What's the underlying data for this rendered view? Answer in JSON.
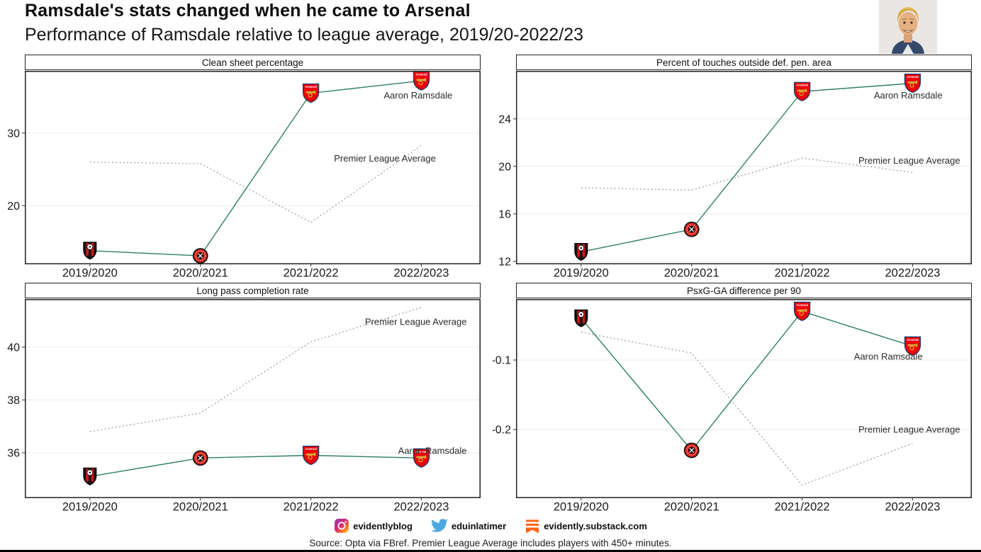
{
  "header": {
    "title": "Ramsdale's stats changed when he came to Arsenal",
    "subtitle": "Performance of Ramsdale relative to league average, 2019/20-2022/23"
  },
  "chart_data": [
    {
      "type": "line",
      "title": "Clean sheet percentage",
      "categories": [
        "2019/2020",
        "2020/2021",
        "2021/2022",
        "2022/2023"
      ],
      "series": [
        {
          "name": "Aaron Ramsdale",
          "style": "solid",
          "values": [
            13.8,
            13.1,
            35.5,
            37.2
          ],
          "clubs": [
            "bournemouth",
            "sheffield-united",
            "arsenal",
            "arsenal"
          ]
        },
        {
          "name": "Premier League Average",
          "style": "dotted",
          "values": [
            26.0,
            25.8,
            17.7,
            28.3
          ]
        }
      ],
      "y_ticks": [
        20,
        30
      ],
      "ylim": [
        12.0,
        38.5
      ],
      "annotations": [
        {
          "text": "Aaron Ramsdale",
          "x": 2.97,
          "y": 35.2
        },
        {
          "text": "Premier League Average",
          "x": 2.67,
          "y": 26.5
        }
      ]
    },
    {
      "type": "line",
      "title": "Percent of touches outside def. pen. area",
      "categories": [
        "2019/2020",
        "2020/2021",
        "2021/2022",
        "2022/2023"
      ],
      "series": [
        {
          "name": "Aaron Ramsdale",
          "style": "solid",
          "values": [
            12.8,
            14.7,
            26.3,
            27.0
          ],
          "clubs": [
            "bournemouth",
            "sheffield-united",
            "arsenal",
            "arsenal"
          ]
        },
        {
          "name": "Premier League Average",
          "style": "dotted",
          "values": [
            18.2,
            18.0,
            20.7,
            19.5
          ]
        }
      ],
      "y_ticks": [
        12,
        16,
        20,
        24
      ],
      "ylim": [
        11.8,
        28.0
      ],
      "annotations": [
        {
          "text": "Aaron Ramsdale",
          "x": 2.96,
          "y": 26.0
        },
        {
          "text": "Premier League Average",
          "x": 2.97,
          "y": 20.5
        }
      ]
    },
    {
      "type": "line",
      "title": "Long pass completion rate",
      "categories": [
        "2019/2020",
        "2020/2021",
        "2021/2022",
        "2022/2023"
      ],
      "series": [
        {
          "name": "Aaron Ramsdale",
          "style": "solid",
          "values": [
            35.1,
            35.8,
            35.9,
            35.8
          ],
          "clubs": [
            "bournemouth",
            "sheffield-united",
            "arsenal",
            "arsenal"
          ]
        },
        {
          "name": "Premier League Average",
          "style": "dotted",
          "values": [
            36.8,
            37.5,
            40.2,
            41.5
          ]
        }
      ],
      "y_ticks": [
        36,
        38,
        40
      ],
      "ylim": [
        34.3,
        41.8
      ],
      "annotations": [
        {
          "text": "Premier League Average",
          "x": 2.95,
          "y": 40.96
        },
        {
          "text": "Aaron Ramsdale",
          "x": 3.1,
          "y": 36.08
        }
      ]
    },
    {
      "type": "line",
      "title": "PsxG-GA difference per 90",
      "categories": [
        "2019/2020",
        "2020/2021",
        "2021/2022",
        "2022/2023"
      ],
      "series": [
        {
          "name": "Aaron Ramsdale",
          "style": "solid",
          "values": [
            -0.04,
            -0.23,
            -0.03,
            -0.08
          ],
          "clubs": [
            "bournemouth",
            "sheffield-united",
            "arsenal",
            "arsenal"
          ]
        },
        {
          "name": "Premier League Average",
          "style": "dotted",
          "values": [
            -0.06,
            -0.09,
            -0.28,
            -0.22
          ]
        }
      ],
      "y_ticks": [
        -0.1,
        -0.2
      ],
      "ylim": [
        -0.298,
        -0.013
      ],
      "annotations": [
        {
          "text": "Aaron Ramsdale",
          "x": 2.78,
          "y": -0.095
        },
        {
          "text": "Premier League Average",
          "x": 2.97,
          "y": -0.2
        }
      ]
    }
  ],
  "footer": {
    "social": [
      {
        "icon": "instagram-icon",
        "label": "evidentlyblog"
      },
      {
        "icon": "twitter-icon",
        "label": "eduinlatimer"
      },
      {
        "icon": "substack-icon",
        "label": "evidently.substack.com"
      }
    ],
    "source": "Source: Opta via FBref. Premier League Average includes players with 450+ minutes."
  },
  "colors": {
    "ramsdale_line": "#2F7F63",
    "league_average_line": "#A9A2BD",
    "grid": "#EDEDED",
    "panel_border": "#222222",
    "axis_text": "#1A1A1A",
    "twitter": "#4FA8DD",
    "substack": "#FF6719",
    "bottom_bar": "#000000"
  },
  "club_colors": {
    "bournemouth": {
      "shield": "#1A1110",
      "stripe": "#D3151B",
      "ball": "#FFFFFF"
    },
    "sheffield-united": {
      "ring": "#E5231B",
      "outline": "#141414",
      "emblem": "#FFFFFF"
    },
    "arsenal": {
      "shield": "#EF0107",
      "outline": "#1D3C6E",
      "cannon": "#D4AF37",
      "text": "Arsenal"
    }
  }
}
